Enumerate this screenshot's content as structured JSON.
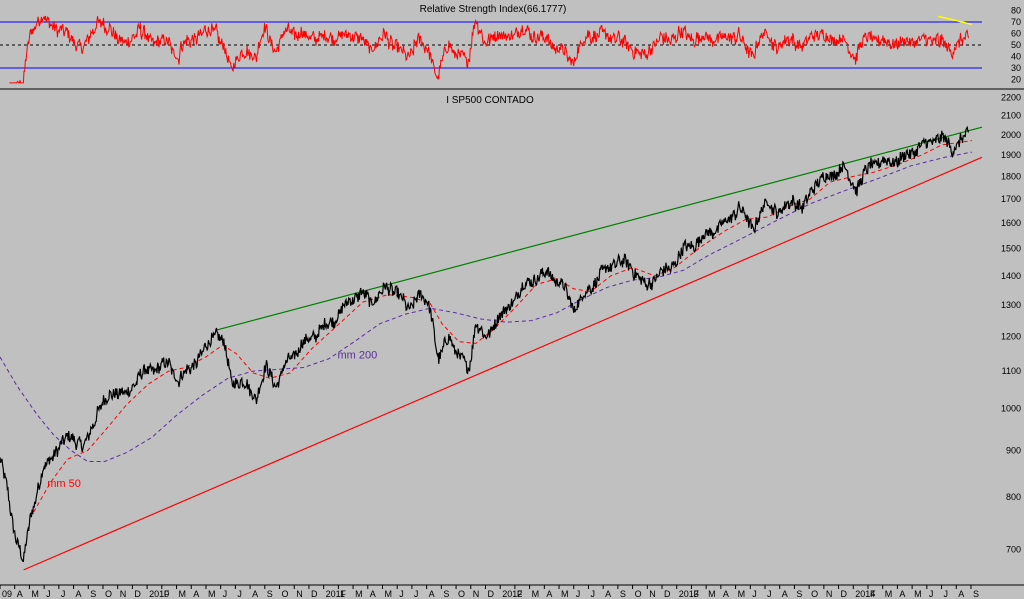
{
  "chart_data": [
    {
      "type": "line",
      "title": "Relative Strength Index(66.1777)",
      "y_ticks": [
        20,
        30,
        40,
        50,
        60,
        70,
        80
      ],
      "ylim": [
        16,
        84
      ],
      "reference_lines": [
        {
          "y": 70,
          "color": "#0000ff",
          "style": "solid"
        },
        {
          "y": 50,
          "color": "#000000",
          "style": "dashed"
        },
        {
          "y": 30,
          "color": "#0000ff",
          "style": "solid"
        }
      ],
      "series": [
        {
          "color": "#ff0000",
          "last_value": 66.1777
        }
      ],
      "trendline": {
        "color": "#ffff00",
        "from": [
          2014.56,
          75
        ],
        "to": [
          2014.76,
          68
        ]
      },
      "grid": false
    },
    {
      "type": "line",
      "title": "I SP500 CONTADO",
      "y_scale": "log",
      "ylim": [
        640,
        2230
      ],
      "y_ticks": [
        700,
        800,
        900,
        1000,
        1100,
        1200,
        1300,
        1400,
        1500,
        1600,
        1700,
        1800,
        1900,
        2000,
        2100,
        2200
      ],
      "x_start": 2009.0,
      "x_end": 2014.82,
      "x_ticks": [
        "09",
        "A",
        "M",
        "J",
        "J",
        "A",
        "S",
        "O",
        "N",
        "D",
        "2010",
        "F",
        "M",
        "A",
        "M",
        "J",
        "J",
        "A",
        "S",
        "O",
        "N",
        "D",
        "2011",
        "F",
        "M",
        "A",
        "M",
        "J",
        "J",
        "A",
        "S",
        "O",
        "N",
        "D",
        "2012",
        "F",
        "M",
        "A",
        "M",
        "J",
        "J",
        "A",
        "S",
        "O",
        "N",
        "D",
        "2013",
        "F",
        "M",
        "A",
        "M",
        "J",
        "J",
        "A",
        "S",
        "O",
        "N",
        "D",
        "2014",
        "F",
        "M",
        "A",
        "M",
        "J",
        "J",
        "A",
        "S"
      ],
      "price_color": "#000000",
      "price_anchors": [
        [
          2009.0,
          880
        ],
        [
          2009.04,
          820
        ],
        [
          2009.08,
          740
        ],
        [
          2009.14,
          676
        ],
        [
          2009.18,
          760
        ],
        [
          2009.25,
          850
        ],
        [
          2009.33,
          900
        ],
        [
          2009.42,
          935
        ],
        [
          2009.5,
          905
        ],
        [
          2009.58,
          995
        ],
        [
          2009.67,
          1045
        ],
        [
          2009.75,
          1035
        ],
        [
          2009.83,
          1090
        ],
        [
          2009.92,
          1108
        ],
        [
          2010.0,
          1120
        ],
        [
          2010.06,
          1075
        ],
        [
          2010.12,
          1105
        ],
        [
          2010.2,
          1150
        ],
        [
          2010.28,
          1215
        ],
        [
          2010.33,
          1175
        ],
        [
          2010.37,
          1075
        ],
        [
          2010.45,
          1065
        ],
        [
          2010.52,
          1030
        ],
        [
          2010.58,
          1110
        ],
        [
          2010.64,
          1060
        ],
        [
          2010.7,
          1125
        ],
        [
          2010.8,
          1180
        ],
        [
          2010.9,
          1220
        ],
        [
          2011.0,
          1265
        ],
        [
          2011.08,
          1320
        ],
        [
          2011.14,
          1340
        ],
        [
          2011.2,
          1310
        ],
        [
          2011.28,
          1355
        ],
        [
          2011.35,
          1350
        ],
        [
          2011.42,
          1280
        ],
        [
          2011.48,
          1340
        ],
        [
          2011.55,
          1290
        ],
        [
          2011.6,
          1130
        ],
        [
          2011.66,
          1200
        ],
        [
          2011.72,
          1145
        ],
        [
          2011.78,
          1100
        ],
        [
          2011.82,
          1250
        ],
        [
          2011.88,
          1190
        ],
        [
          2011.94,
          1255
        ],
        [
          2012.0,
          1280
        ],
        [
          2012.08,
          1350
        ],
        [
          2012.16,
          1390
        ],
        [
          2012.25,
          1410
        ],
        [
          2012.33,
          1370
        ],
        [
          2012.4,
          1290
        ],
        [
          2012.48,
          1345
        ],
        [
          2012.56,
          1405
        ],
        [
          2012.66,
          1455
        ],
        [
          2012.74,
          1435
        ],
        [
          2012.83,
          1360
        ],
        [
          2012.9,
          1405
        ],
        [
          2012.97,
          1425
        ],
        [
          2013.05,
          1495
        ],
        [
          2013.12,
          1520
        ],
        [
          2013.2,
          1560
        ],
        [
          2013.3,
          1600
        ],
        [
          2013.38,
          1665
        ],
        [
          2013.46,
          1580
        ],
        [
          2013.55,
          1690
        ],
        [
          2013.62,
          1640
        ],
        [
          2013.7,
          1700
        ],
        [
          2013.76,
          1655
        ],
        [
          2013.82,
          1760
        ],
        [
          2013.9,
          1800
        ],
        [
          2014.0,
          1840
        ],
        [
          2014.08,
          1745
        ],
        [
          2014.16,
          1860
        ],
        [
          2014.26,
          1870
        ],
        [
          2014.34,
          1880
        ],
        [
          2014.42,
          1925
        ],
        [
          2014.5,
          1960
        ],
        [
          2014.56,
          1985
        ],
        [
          2014.6,
          1975
        ],
        [
          2014.64,
          1930
        ],
        [
          2014.7,
          1975
        ],
        [
          2014.74,
          2000
        ]
      ],
      "moving_averages": [
        {
          "name": "mm 50",
          "color": "#ff0000",
          "style": "dashed",
          "points": [
            [
              2009.2,
              770
            ],
            [
              2009.3,
              830
            ],
            [
              2009.4,
              880
            ],
            [
              2009.52,
              900
            ],
            [
              2009.62,
              945
            ],
            [
              2009.75,
              1010
            ],
            [
              2009.88,
              1065
            ],
            [
              2010.0,
              1100
            ],
            [
              2010.1,
              1110
            ],
            [
              2010.22,
              1140
            ],
            [
              2010.32,
              1175
            ],
            [
              2010.4,
              1150
            ],
            [
              2010.5,
              1095
            ],
            [
              2010.6,
              1080
            ],
            [
              2010.72,
              1095
            ],
            [
              2010.85,
              1165
            ],
            [
              2011.0,
              1235
            ],
            [
              2011.15,
              1310
            ],
            [
              2011.3,
              1335
            ],
            [
              2011.45,
              1325
            ],
            [
              2011.55,
              1305
            ],
            [
              2011.62,
              1240
            ],
            [
              2011.72,
              1185
            ],
            [
              2011.82,
              1180
            ],
            [
              2011.92,
              1220
            ],
            [
              2012.05,
              1290
            ],
            [
              2012.18,
              1370
            ],
            [
              2012.3,
              1390
            ],
            [
              2012.4,
              1355
            ],
            [
              2012.5,
              1345
            ],
            [
              2012.62,
              1400
            ],
            [
              2012.75,
              1430
            ],
            [
              2012.88,
              1400
            ],
            [
              2013.0,
              1430
            ],
            [
              2013.15,
              1505
            ],
            [
              2013.3,
              1570
            ],
            [
              2013.42,
              1615
            ],
            [
              2013.55,
              1625
            ],
            [
              2013.68,
              1670
            ],
            [
              2013.8,
              1700
            ],
            [
              2013.92,
              1775
            ],
            [
              2014.05,
              1800
            ],
            [
              2014.18,
              1820
            ],
            [
              2014.32,
              1855
            ],
            [
              2014.46,
              1900
            ],
            [
              2014.58,
              1950
            ],
            [
              2014.7,
              1965
            ],
            [
              2014.76,
              1972
            ]
          ]
        },
        {
          "name": "mm 200",
          "color": "#5b2ca0",
          "style": "dashed",
          "points": [
            [
              2009.0,
              1140
            ],
            [
              2009.1,
              1060
            ],
            [
              2009.22,
              985
            ],
            [
              2009.32,
              935
            ],
            [
              2009.42,
              900
            ],
            [
              2009.52,
              875
            ],
            [
              2009.62,
              875
            ],
            [
              2009.75,
              895
            ],
            [
              2009.9,
              930
            ],
            [
              2010.05,
              985
            ],
            [
              2010.2,
              1035
            ],
            [
              2010.35,
              1080
            ],
            [
              2010.5,
              1100
            ],
            [
              2010.65,
              1105
            ],
            [
              2010.8,
              1110
            ],
            [
              2010.95,
              1135
            ],
            [
              2011.1,
              1185
            ],
            [
              2011.25,
              1240
            ],
            [
              2011.4,
              1270
            ],
            [
              2011.55,
              1290
            ],
            [
              2011.7,
              1275
            ],
            [
              2011.85,
              1255
            ],
            [
              2012.0,
              1245
            ],
            [
              2012.15,
              1250
            ],
            [
              2012.3,
              1275
            ],
            [
              2012.45,
              1320
            ],
            [
              2012.6,
              1360
            ],
            [
              2012.75,
              1385
            ],
            [
              2012.9,
              1395
            ],
            [
              2013.05,
              1420
            ],
            [
              2013.2,
              1475
            ],
            [
              2013.4,
              1540
            ],
            [
              2013.6,
              1610
            ],
            [
              2013.8,
              1680
            ],
            [
              2014.0,
              1735
            ],
            [
              2014.2,
              1790
            ],
            [
              2014.4,
              1850
            ],
            [
              2014.6,
              1890
            ],
            [
              2014.76,
              1915
            ]
          ]
        }
      ],
      "trendlines": [
        {
          "color": "#008000",
          "from": [
            2010.28,
            1220
          ],
          "to": [
            2014.82,
            2040
          ]
        },
        {
          "color": "#ff0000",
          "from": [
            2009.14,
            665
          ],
          "to": [
            2014.82,
            1890
          ]
        }
      ],
      "annotations": [
        {
          "text": "mm 50",
          "color": "#ff0000",
          "at": [
            2009.28,
            820
          ]
        },
        {
          "text": "mm 200",
          "color": "#5b2ca0",
          "at": [
            2011.0,
            1135
          ]
        }
      ],
      "grid": false
    }
  ]
}
